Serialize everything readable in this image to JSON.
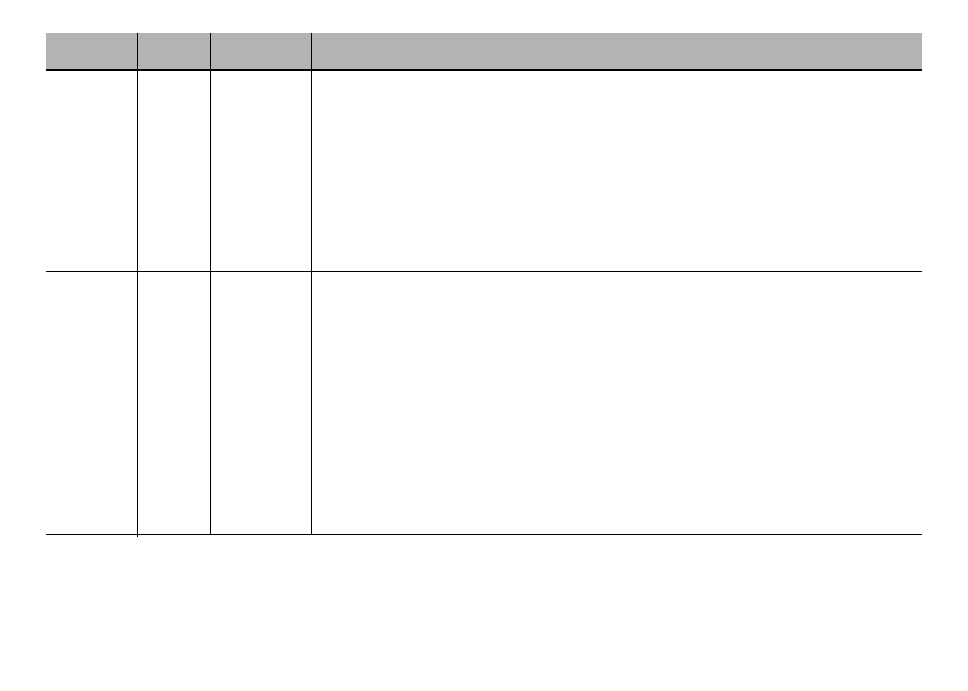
{
  "table": {
    "header_background": "#b3b3b3",
    "line_color": "#000000",
    "columns": [
      "",
      "",
      "",
      "",
      ""
    ],
    "rows": [
      [
        "",
        "",
        "",
        "",
        ""
      ],
      [
        "",
        "",
        "",
        "",
        ""
      ],
      [
        "",
        "",
        "",
        "",
        ""
      ]
    ]
  }
}
